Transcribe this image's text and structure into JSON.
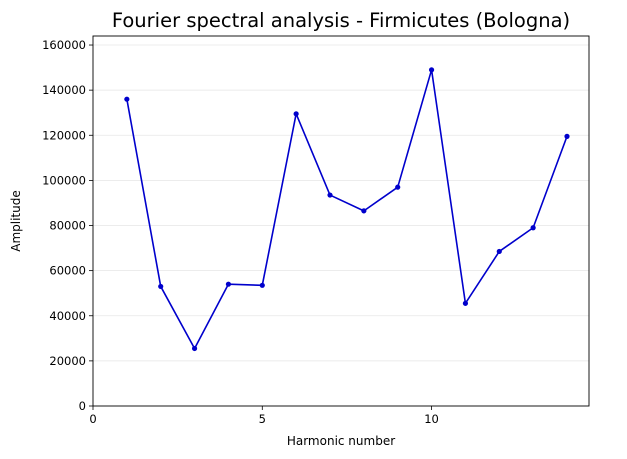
{
  "chart_data": {
    "type": "line",
    "title": "Fourier spectral analysis - Firmicutes (Bologna)",
    "xlabel": "Harmonic number",
    "ylabel": "Amplitude",
    "xlim": [
      0,
      14.65
    ],
    "ylim": [
      0,
      164000
    ],
    "xticks": [
      0,
      5,
      10
    ],
    "yticks": [
      0,
      20000,
      40000,
      60000,
      80000,
      100000,
      120000,
      140000,
      160000
    ],
    "grid": "horizontal",
    "series": [
      {
        "color": "#0000cc",
        "marker": "circle",
        "x": [
          1,
          2,
          3,
          4,
          5,
          6,
          7,
          8,
          9,
          10,
          11,
          12,
          13,
          14
        ],
        "y": [
          136000,
          53000,
          25500,
          54000,
          53500,
          129500,
          93500,
          86500,
          97000,
          149000,
          45500,
          68500,
          79000,
          119500
        ]
      }
    ]
  }
}
